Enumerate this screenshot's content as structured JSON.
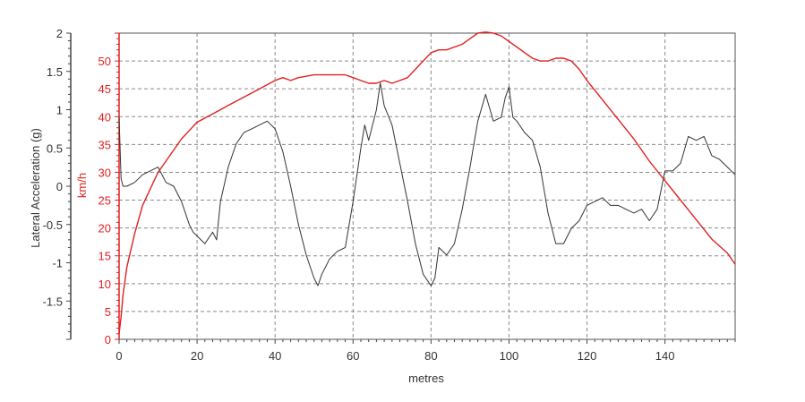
{
  "chart_data": {
    "type": "line",
    "xlabel": "metres",
    "x_ticks": [
      "0",
      "20",
      "40",
      "60",
      "80",
      "100",
      "120",
      "140"
    ],
    "xlim": [
      0,
      158
    ],
    "grid": true,
    "axes": {
      "left": {
        "label": "Lateral Acceleration (g)",
        "ylim": [
          -2,
          2
        ],
        "ticks": [
          "2",
          "1.5",
          "1",
          "0.5",
          "0",
          "-0.5",
          "-1",
          "-1.5"
        ],
        "color": "#333333"
      },
      "inner": {
        "label": "km/h",
        "ylim": [
          0,
          55
        ],
        "ticks": [
          "50",
          "45",
          "40",
          "35",
          "30",
          "25",
          "20",
          "15",
          "10",
          "5",
          "0"
        ],
        "color": "#e02020"
      }
    },
    "series": [
      {
        "axis": "left",
        "color": "#333333",
        "x": [
          0,
          0.5,
          1,
          2,
          4,
          6,
          8,
          10,
          12,
          14,
          16,
          18,
          19,
          20,
          22,
          24,
          25,
          26,
          28,
          30,
          32,
          34,
          36,
          38,
          40,
          42,
          44,
          46,
          48,
          50,
          51,
          52,
          54,
          56,
          58,
          60,
          62,
          63,
          64,
          66,
          67,
          68,
          70,
          72,
          74,
          76,
          78,
          80,
          81,
          82,
          84,
          86,
          88,
          90,
          92,
          94,
          96,
          98,
          99,
          100,
          101,
          102,
          104,
          106,
          108,
          110,
          112,
          114,
          116,
          118,
          120,
          122,
          124,
          126,
          128,
          130,
          132,
          134,
          136,
          138,
          140,
          142,
          144,
          146,
          148,
          150,
          152,
          154,
          156,
          158
        ],
        "y": [
          0.9,
          0.1,
          0.0,
          0.0,
          0.05,
          0.15,
          0.2,
          0.25,
          0.05,
          0.0,
          -0.2,
          -0.5,
          -0.6,
          -0.65,
          -0.75,
          -0.6,
          -0.7,
          -0.2,
          0.25,
          0.55,
          0.7,
          0.75,
          0.8,
          0.85,
          0.75,
          0.45,
          0.0,
          -0.5,
          -0.9,
          -1.2,
          -1.3,
          -1.15,
          -0.95,
          -0.85,
          -0.8,
          -0.2,
          0.5,
          0.8,
          0.6,
          1.0,
          1.35,
          1.05,
          0.8,
          0.3,
          -0.2,
          -0.75,
          -1.15,
          -1.3,
          -1.2,
          -0.8,
          -0.9,
          -0.75,
          -0.3,
          0.25,
          0.85,
          1.2,
          0.85,
          0.9,
          1.15,
          1.3,
          0.9,
          0.85,
          0.7,
          0.6,
          0.25,
          -0.35,
          -0.75,
          -0.75,
          -0.55,
          -0.45,
          -0.25,
          -0.2,
          -0.15,
          -0.25,
          -0.25,
          -0.3,
          -0.35,
          -0.3,
          -0.45,
          -0.3,
          0.2,
          0.2,
          0.3,
          0.65,
          0.6,
          0.65,
          0.4,
          0.35,
          0.25,
          0.15
        ]
      },
      {
        "axis": "inner",
        "color": "#e02020",
        "x": [
          0,
          0.5,
          1,
          2,
          4,
          6,
          8,
          10,
          12,
          14,
          16,
          18,
          20,
          24,
          28,
          32,
          36,
          40,
          42,
          44,
          46,
          50,
          54,
          58,
          60,
          62,
          64,
          66,
          68,
          70,
          72,
          74,
          76,
          78,
          80,
          82,
          84,
          86,
          88,
          90,
          92,
          94,
          96,
          98,
          100,
          102,
          104,
          106,
          108,
          110,
          112,
          114,
          116,
          118,
          120,
          124,
          128,
          132,
          136,
          140,
          144,
          148,
          152,
          156,
          158
        ],
        "y": [
          1,
          4,
          8,
          13,
          19,
          24,
          27,
          30,
          32,
          34,
          36,
          37.5,
          39,
          40.5,
          42,
          43.5,
          45,
          46.5,
          47,
          46.5,
          47,
          47.5,
          47.5,
          47.5,
          47,
          46.5,
          46,
          46,
          46.5,
          46,
          46.5,
          47,
          48.5,
          50,
          51.5,
          52,
          52,
          52.5,
          53,
          54,
          55,
          55.2,
          55,
          54.5,
          53.5,
          52.5,
          51.5,
          50.5,
          50,
          50,
          50.5,
          50.5,
          50,
          48.5,
          46.5,
          43,
          39.5,
          36,
          32,
          28.5,
          25,
          21.5,
          18,
          15.5,
          13.5
        ]
      }
    ]
  }
}
